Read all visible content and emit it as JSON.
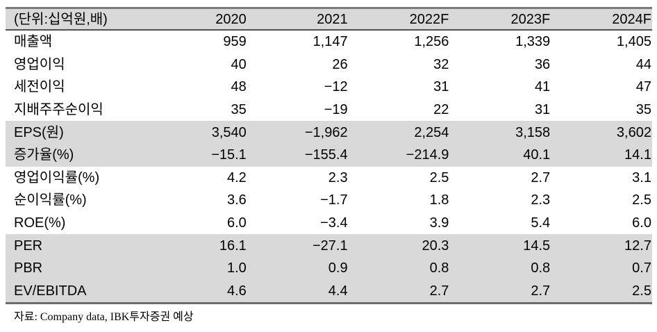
{
  "table": {
    "unit_header": "(단위:십억원,배)",
    "columns": [
      "2020",
      "2021",
      "2022F",
      "2023F",
      "2024F"
    ],
    "rows": [
      {
        "label": "매출액",
        "values": [
          "959",
          "1,147",
          "1,256",
          "1,339",
          "1,405"
        ],
        "shaded": false
      },
      {
        "label": "영업이익",
        "values": [
          "40",
          "26",
          "32",
          "36",
          "44"
        ],
        "shaded": false
      },
      {
        "label": "세전이익",
        "values": [
          "48",
          "−12",
          "31",
          "41",
          "47"
        ],
        "shaded": false
      },
      {
        "label": "지배주주순이익",
        "values": [
          "35",
          "−19",
          "22",
          "31",
          "35"
        ],
        "shaded": false
      },
      {
        "label": "EPS(원)",
        "values": [
          "3,540",
          "−1,962",
          "2,254",
          "3,158",
          "3,602"
        ],
        "shaded": true
      },
      {
        "label": "증가율(%)",
        "values": [
          "−15.1",
          "−155.4",
          "−214.9",
          "40.1",
          "14.1"
        ],
        "shaded": true
      },
      {
        "label": "영업이익률(%)",
        "values": [
          "4.2",
          "2.3",
          "2.5",
          "2.7",
          "3.1"
        ],
        "shaded": false
      },
      {
        "label": "순이익률(%)",
        "values": [
          "3.6",
          "−1.7",
          "1.8",
          "2.3",
          "2.5"
        ],
        "shaded": false
      },
      {
        "label": "ROE(%)",
        "values": [
          "6.0",
          "−3.4",
          "3.9",
          "5.4",
          "6.0"
        ],
        "shaded": false
      },
      {
        "label": "PER",
        "values": [
          "16.1",
          "−27.1",
          "20.3",
          "14.5",
          "12.7"
        ],
        "shaded": true
      },
      {
        "label": "PBR",
        "values": [
          "1.0",
          "0.9",
          "0.8",
          "0.8",
          "0.7"
        ],
        "shaded": true
      },
      {
        "label": "EV/EBITDA",
        "values": [
          "4.6",
          "4.4",
          "2.7",
          "2.7",
          "2.5"
        ],
        "shaded": true
      }
    ],
    "source": "자료: Company data, IBK투자증권 예상"
  },
  "colors": {
    "band": "#d9d9d9",
    "border_top": "#7a7a7a",
    "border_header_underline": "#4f4f4f",
    "border_bottom": "#6b6b6b",
    "text": "#000000"
  }
}
